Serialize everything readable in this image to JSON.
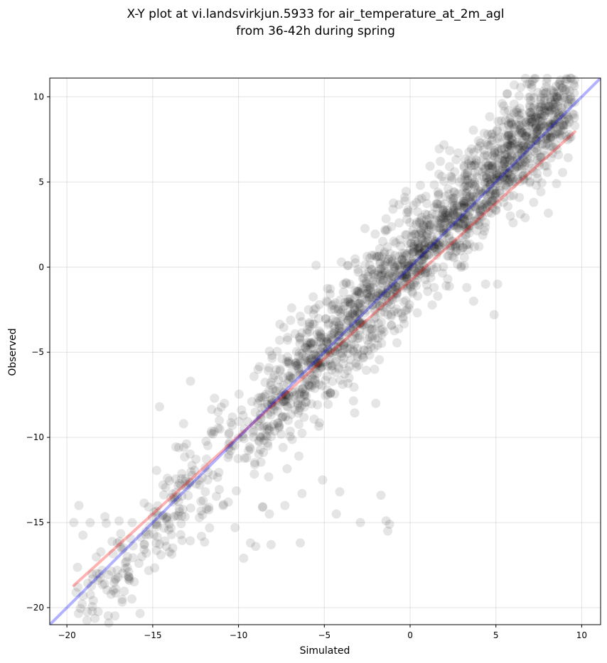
{
  "chart_data": {
    "type": "scatter",
    "title_lines": [
      "X-Y plot at vi.landsvirkjun.5933 for air_temperature_at_2m_agl",
      "from 36-42h during spring"
    ],
    "xlabel": "Simulated",
    "ylabel": "Observed",
    "xlim": [
      -21,
      11.1
    ],
    "ylim": [
      -21,
      11.1
    ],
    "xticks": [
      -20,
      -15,
      -10,
      -5,
      0,
      5,
      10
    ],
    "yticks": [
      -20,
      -15,
      -10,
      -5,
      0,
      5,
      10
    ],
    "tick_labels": [
      "−20",
      "−15",
      "−10",
      "−5",
      "0",
      "5",
      "10"
    ],
    "grid": true,
    "point_color": "#000000",
    "point_opacity": 0.1,
    "series": [
      {
        "type": "scatter",
        "cloud": {
          "generated": true,
          "count": 2100,
          "x_range": [
            -19.5,
            9.6
          ],
          "trend_slope": 1.06,
          "trend_intercept": 0.4,
          "noise_sd": 1.6
        },
        "points": [
          [
            -19.6,
            -15.0
          ],
          [
            -19.3,
            -14.0
          ],
          [
            -17.3,
            -19.0
          ],
          [
            -16.6,
            -17.7
          ],
          [
            -16.4,
            -17.9
          ],
          [
            -15.8,
            -17.4
          ],
          [
            -15.5,
            -16.3
          ],
          [
            -12.8,
            -6.7
          ],
          [
            -9.7,
            -17.1
          ],
          [
            -9.3,
            -16.2
          ],
          [
            -9.0,
            -16.4
          ],
          [
            -8.1,
            -16.3
          ],
          [
            -6.4,
            -16.2
          ],
          [
            -5.1,
            -12.5
          ],
          [
            -4.3,
            -14.5
          ],
          [
            -4.1,
            -13.2
          ],
          [
            -2.9,
            -15.0
          ],
          [
            -1.7,
            -13.4
          ],
          [
            -1.4,
            -14.9
          ],
          [
            -1.3,
            -15.5
          ],
          [
            -1.2,
            -15.1
          ],
          [
            -14.6,
            -8.2
          ],
          [
            9.1,
            7.7
          ],
          [
            9.2,
            8.8
          ],
          [
            9.6,
            8.3
          ],
          [
            7.5,
            9.4
          ],
          [
            5.8,
            8.7
          ],
          [
            7.6,
            8.2
          ],
          [
            8.1,
            8.3
          ],
          [
            2.8,
            6.7
          ],
          [
            4.4,
            -1.0
          ],
          [
            5.1,
            -1.0
          ],
          [
            3.3,
            -1.2
          ],
          [
            4.9,
            -2.8
          ],
          [
            3.7,
            -2.0
          ],
          [
            2.1,
            -1.1
          ],
          [
            1.4,
            -1.2
          ],
          [
            -2.0,
            -8.0
          ],
          [
            -6.9,
            -2.4
          ],
          [
            -7.6,
            -4.3
          ],
          [
            -5.6,
            -2.5
          ],
          [
            -4.0,
            0.3
          ],
          [
            -3.6,
            0.1
          ],
          [
            -1.0,
            3.4
          ],
          [
            0.6,
            4.8
          ],
          [
            2.3,
            5.9
          ],
          [
            -0.3,
            3.9
          ],
          [
            6.0,
            2.6
          ],
          [
            6.7,
            2.9
          ],
          [
            7.2,
            3.8
          ],
          [
            -11.2,
            -8.5
          ],
          [
            -11.4,
            -7.7
          ],
          [
            -13.2,
            -9.2
          ],
          [
            -11.8,
            -12.5
          ],
          [
            -10.6,
            -13.8
          ],
          [
            -10.2,
            -15.3
          ],
          [
            -8.6,
            -14.1
          ],
          [
            -8.2,
            -14.5
          ],
          [
            -7.3,
            -14.0
          ],
          [
            -6.3,
            -13.3
          ]
        ]
      },
      {
        "name": "",
        "type": "line",
        "color": "#ff0000",
        "opacity": 0.3,
        "points": [
          [
            -19.6,
            -18.7
          ],
          [
            9.6,
            7.95
          ]
        ]
      },
      {
        "name": "",
        "type": "line",
        "color": "#0000ff",
        "opacity": 0.3,
        "points": [
          [
            -21,
            -21
          ],
          [
            11.1,
            11.1
          ]
        ]
      }
    ]
  }
}
